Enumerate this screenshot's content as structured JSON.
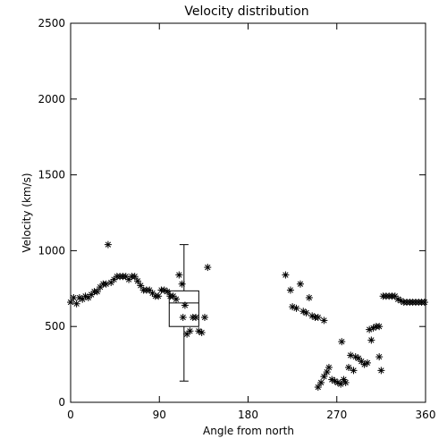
{
  "chart_data": {
    "type": "scatter",
    "title": "Velocity distribution",
    "xlabel": "Angle from north",
    "ylabel": "Velocity (km/s)",
    "xlim": [
      0,
      360
    ],
    "ylim": [
      0,
      2500
    ],
    "xticks": [
      0,
      90,
      180,
      270,
      360
    ],
    "xtick_labels": [
      "0",
      "90",
      "180",
      "270",
      "360"
    ],
    "yticks": [
      0,
      500,
      1000,
      1500,
      2000,
      2500
    ],
    "ytick_labels": [
      "0",
      "500",
      "1000",
      "1500",
      "2000",
      "2500"
    ],
    "grid": false,
    "marker": "asterisk",
    "points": [
      [
        0,
        660
      ],
      [
        3,
        690
      ],
      [
        6,
        650
      ],
      [
        9,
        690
      ],
      [
        12,
        680
      ],
      [
        15,
        700
      ],
      [
        18,
        690
      ],
      [
        21,
        710
      ],
      [
        24,
        730
      ],
      [
        27,
        730
      ],
      [
        30,
        760
      ],
      [
        33,
        780
      ],
      [
        36,
        780
      ],
      [
        38,
        1040
      ],
      [
        41,
        790
      ],
      [
        44,
        810
      ],
      [
        47,
        830
      ],
      [
        50,
        830
      ],
      [
        53,
        830
      ],
      [
        56,
        830
      ],
      [
        59,
        810
      ],
      [
        62,
        830
      ],
      [
        65,
        830
      ],
      [
        68,
        800
      ],
      [
        71,
        770
      ],
      [
        74,
        740
      ],
      [
        77,
        740
      ],
      [
        80,
        740
      ],
      [
        83,
        720
      ],
      [
        86,
        700
      ],
      [
        89,
        700
      ],
      [
        92,
        740
      ],
      [
        95,
        740
      ],
      [
        98,
        730
      ],
      [
        101,
        700
      ],
      [
        104,
        700
      ],
      [
        107,
        680
      ],
      [
        110,
        840
      ],
      [
        113,
        780
      ],
      [
        114,
        560
      ],
      [
        116,
        640
      ],
      [
        118,
        450
      ],
      [
        121,
        470
      ],
      [
        124,
        560
      ],
      [
        127,
        560
      ],
      [
        130,
        470
      ],
      [
        133,
        460
      ],
      [
        136,
        560
      ],
      [
        139,
        890
      ],
      [
        218,
        840
      ],
      [
        223,
        740
      ],
      [
        225,
        630
      ],
      [
        229,
        620
      ],
      [
        233,
        780
      ],
      [
        236,
        600
      ],
      [
        239,
        590
      ],
      [
        242,
        690
      ],
      [
        245,
        570
      ],
      [
        248,
        560
      ],
      [
        251,
        560
      ],
      [
        257,
        540
      ],
      [
        251,
        100
      ],
      [
        254,
        130
      ],
      [
        257,
        170
      ],
      [
        260,
        200
      ],
      [
        262,
        230
      ],
      [
        265,
        150
      ],
      [
        268,
        140
      ],
      [
        271,
        130
      ],
      [
        274,
        120
      ],
      [
        275,
        400
      ],
      [
        277,
        150
      ],
      [
        279,
        130
      ],
      [
        282,
        230
      ],
      [
        284,
        310
      ],
      [
        287,
        210
      ],
      [
        289,
        300
      ],
      [
        292,
        290
      ],
      [
        295,
        270
      ],
      [
        298,
        250
      ],
      [
        301,
        260
      ],
      [
        303,
        480
      ],
      [
        305,
        410
      ],
      [
        307,
        490
      ],
      [
        310,
        500
      ],
      [
        313,
        500
      ],
      [
        313,
        300
      ],
      [
        315,
        210
      ],
      [
        317,
        700
      ],
      [
        320,
        700
      ],
      [
        323,
        700
      ],
      [
        326,
        700
      ],
      [
        329,
        700
      ],
      [
        332,
        680
      ],
      [
        335,
        670
      ],
      [
        338,
        660
      ],
      [
        341,
        660
      ],
      [
        344,
        660
      ],
      [
        347,
        660
      ],
      [
        350,
        660
      ],
      [
        353,
        660
      ],
      [
        356,
        660
      ],
      [
        359,
        660
      ]
    ],
    "boxplot": {
      "x": 115,
      "halfwidth": 15,
      "min": 140,
      "q1": 500,
      "median": 655,
      "q3": 735,
      "max": 1040
    }
  }
}
